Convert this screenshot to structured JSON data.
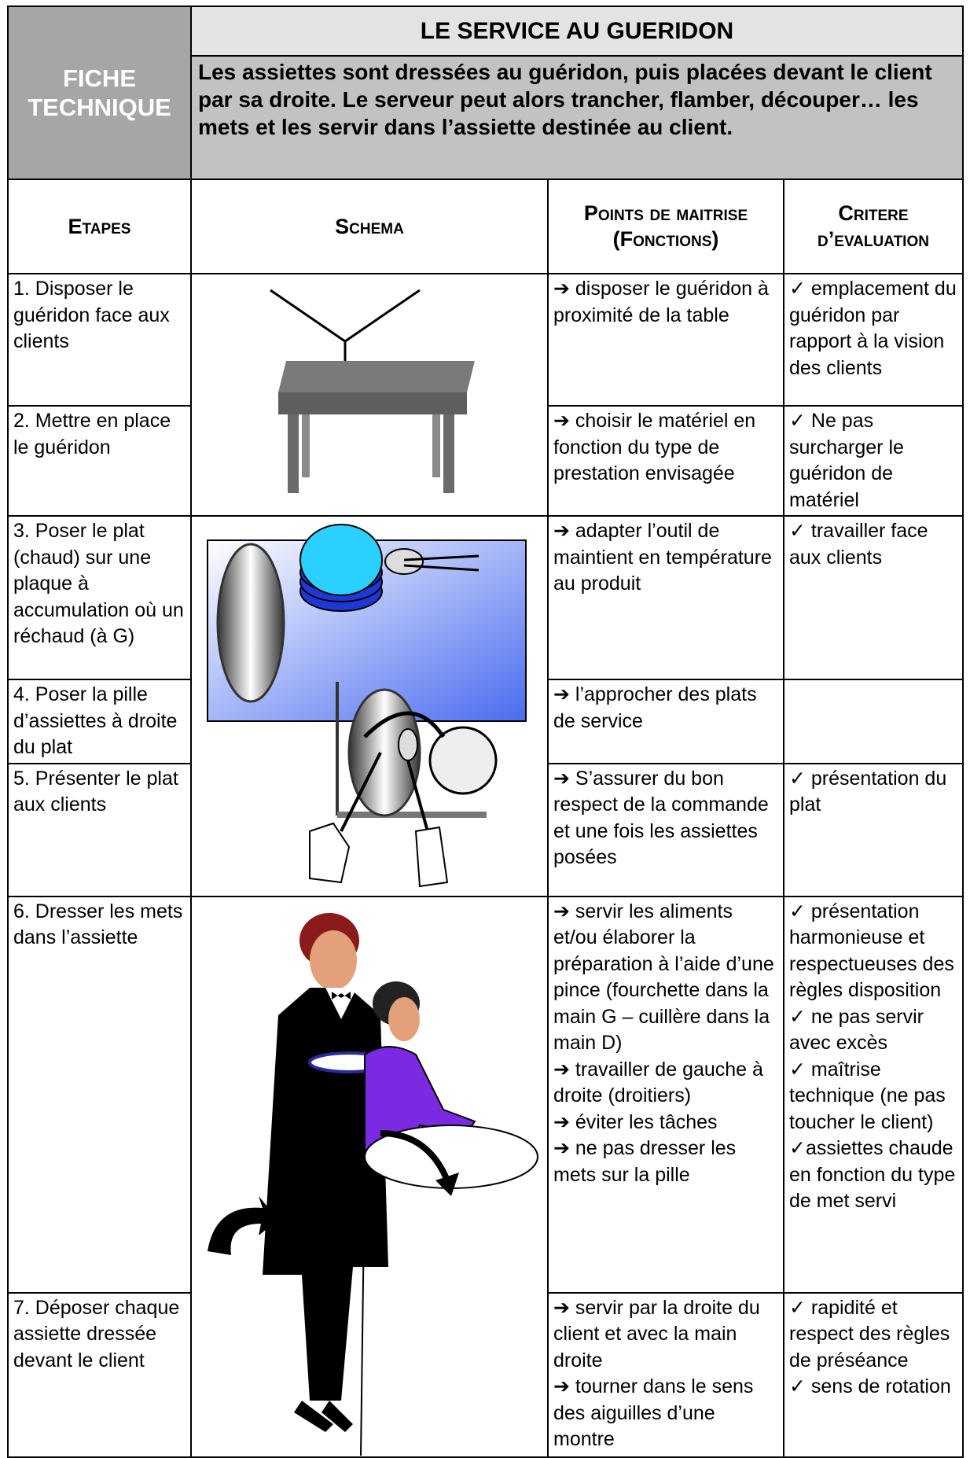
{
  "header": {
    "label": "FICHE TECHNIQUE",
    "title": "LE SERVICE  AU GUERIDON",
    "description": "Les assiettes sont dressées au guéridon, puis placées devant le client par sa droite. Le serveur peut alors trancher, flamber, découper… les mets et les servir dans l’assiette destinée au client."
  },
  "table": {
    "columns": [
      "Etapes",
      "Schema",
      "Points de maitrise (Fonctions)",
      "Critere d’evaluation"
    ],
    "rows": [
      {
        "step": "1. Disposer le guéridon face aux clients",
        "points": [
          "➔ disposer le guéridon à proximité de la table"
        ],
        "criteria": [
          "✓ emplacement du guéridon par rapport à la vision des clients"
        ]
      },
      {
        "step": "2. Mettre en place le guéridon",
        "points": [
          "➔ choisir le matériel en fonction du type de prestation envisagée"
        ],
        "criteria": [
          "✓ Ne pas surcharger le guéridon de matériel"
        ]
      },
      {
        "step": "3. Poser le plat (chaud) sur une plaque à accumulation où un réchaud (à G)",
        "points": [
          "➔ adapter l’outil de maintient en température au produit"
        ],
        "criteria": [
          "✓ travailler face aux clients"
        ]
      },
      {
        "step": "4. Poser la pille d’assiettes à droite du plat",
        "points": [
          "➔ l’approcher des plats de service"
        ],
        "criteria": []
      },
      {
        "step": "5. Présenter le plat aux clients",
        "points": [
          "➔ S’assurer du bon respect de la commande et une fois les assiettes posées"
        ],
        "criteria": [
          "✓ présentation du plat"
        ]
      },
      {
        "step": "6. Dresser les mets dans l’assiette",
        "points": [
          "➔ servir les aliments et/ou élaborer la préparation à l’aide d’une pince (fourchette dans la main G – cuillère dans la main D)",
          "➔ travailler de gauche à droite (droitiers)",
          "➔ éviter les tâches",
          "➔ ne pas dresser les mets sur la pille"
        ],
        "criteria": [
          "✓ présentation harmonieuse et respectueuses des règles disposition",
          "✓ ne pas servir avec excès",
          "✓ maîtrise technique (ne pas toucher le client)",
          "✓assiettes chaude en fonction du type de met servi"
        ]
      },
      {
        "step": "7. Déposer chaque assiette dressée devant le client",
        "points": [
          "➔ servir par la droite du client et avec la main droite",
          "➔ tourner dans le sens des aiguilles d’une montre"
        ],
        "criteria": [
          "✓ rapidité et respect des règles de préséance",
          "✓ sens de rotation"
        ]
      }
    ]
  }
}
